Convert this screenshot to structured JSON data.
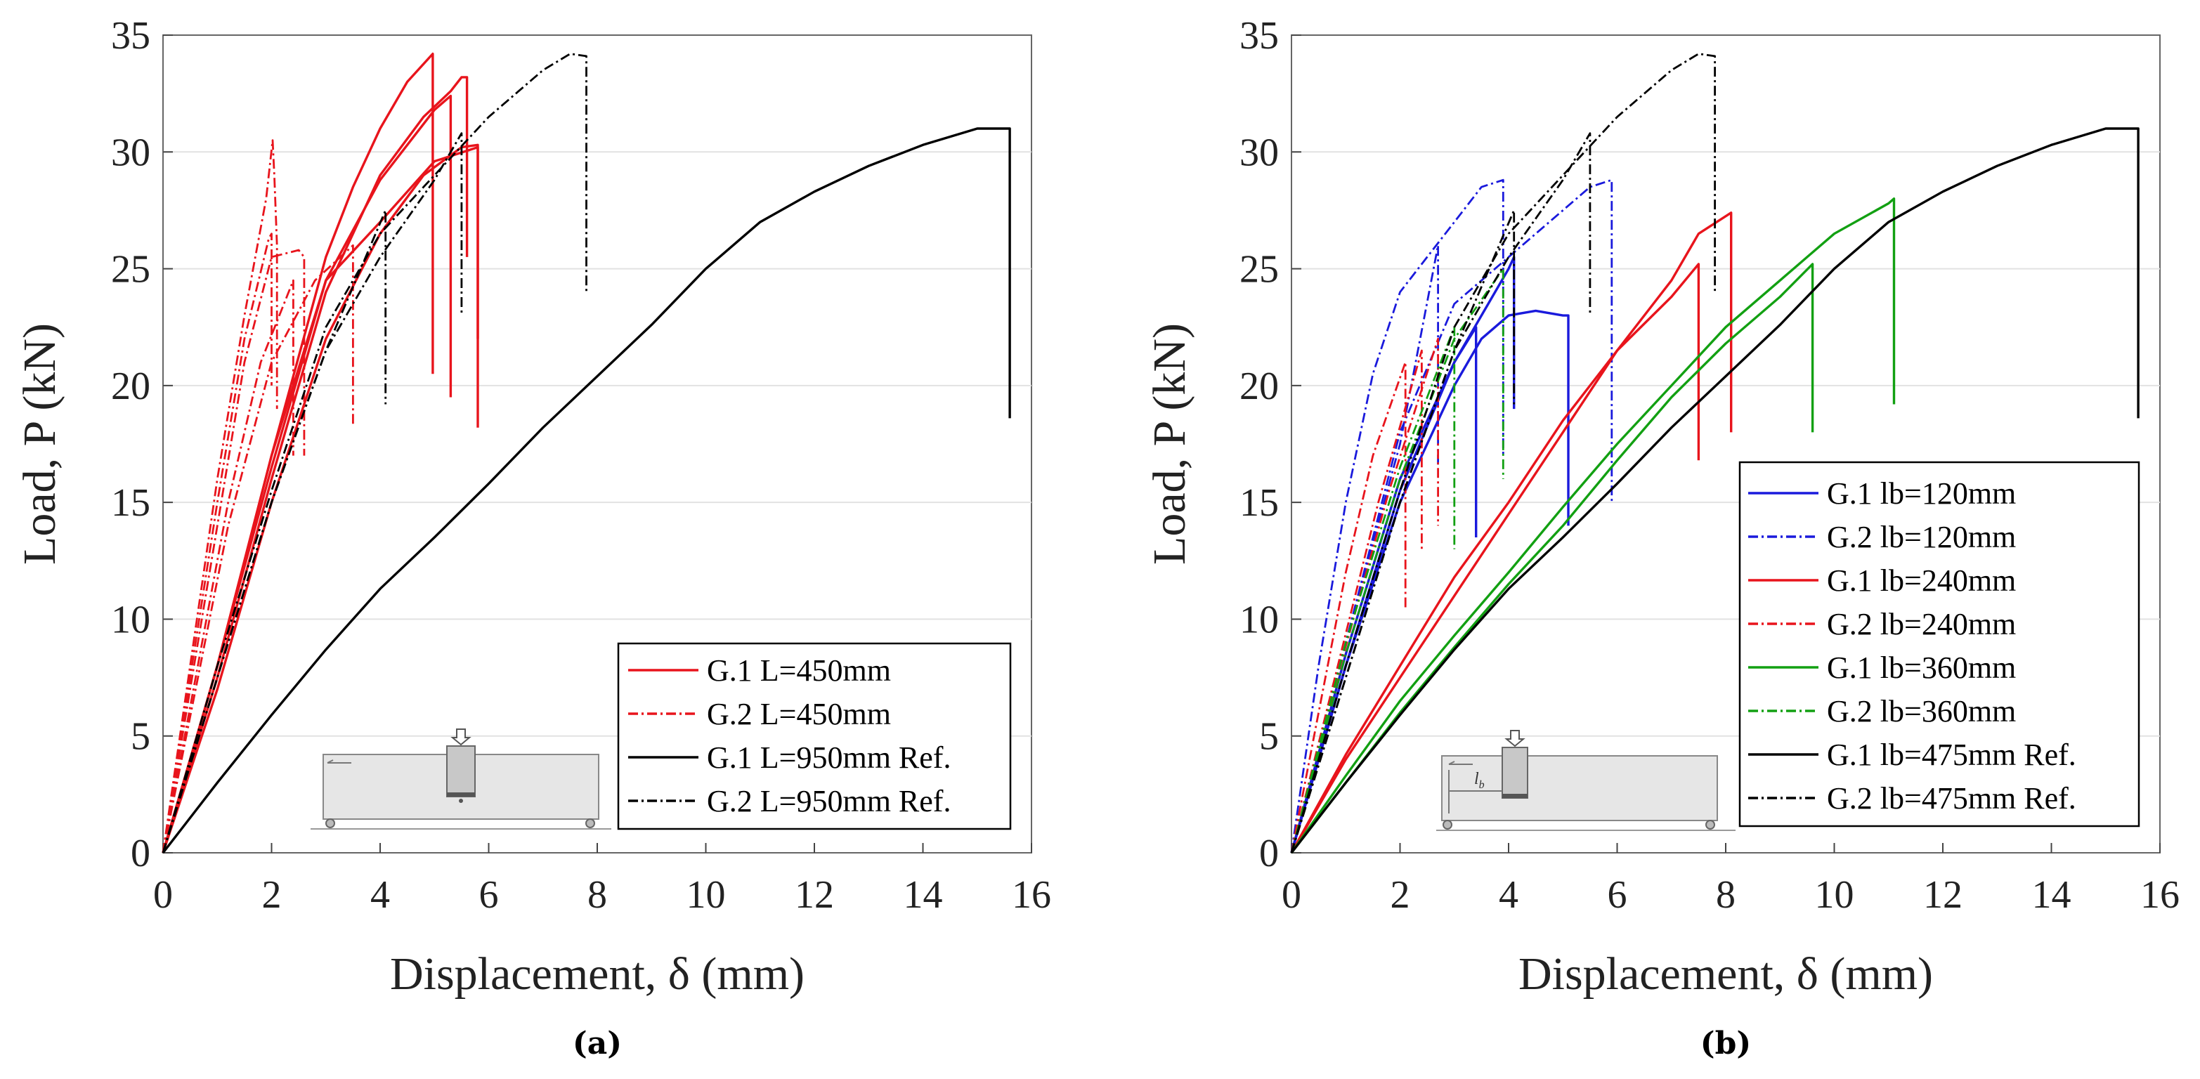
{
  "chart_data": [
    {
      "type": "line",
      "panel_label": "(a)",
      "xlabel": "Displacement, δ (mm)",
      "ylabel": "Load, P (kN)",
      "xlim": [
        0,
        16
      ],
      "ylim": [
        0,
        35
      ],
      "x_ticks": [
        0,
        2,
        4,
        6,
        8,
        10,
        12,
        14,
        16
      ],
      "y_ticks": [
        0,
        5,
        10,
        15,
        20,
        25,
        30,
        35
      ],
      "grid": "horizontal",
      "legend_position": "bottom-right",
      "inset": "beam-test-schematic",
      "legend": [
        {
          "label": "G.1 L=450mm",
          "color": "#e8141c",
          "style": "solid"
        },
        {
          "label": "G.2 L=450mm",
          "color": "#e8141c",
          "style": "dashdot"
        },
        {
          "label": "G.1 L=950mm Ref.",
          "color": "#000000",
          "style": "solid"
        },
        {
          "label": "G.2 L=950mm Ref.",
          "color": "#000000",
          "style": "dashdot"
        }
      ],
      "series": [
        {
          "name": "G.1 L=450mm #1",
          "color": "#e8141c",
          "style": "solid",
          "x": [
            0,
            1,
            2,
            3,
            3.5,
            4,
            4.5,
            4.97,
            4.97
          ],
          "y": [
            0,
            8,
            17,
            25.5,
            28.5,
            31,
            33,
            34.2,
            20.5
          ]
        },
        {
          "name": "G.1 L=450mm #2",
          "color": "#e8141c",
          "style": "solid",
          "x": [
            0,
            1,
            2,
            3,
            4,
            4.8,
            5.3,
            5.5,
            5.6,
            5.6
          ],
          "y": [
            0,
            7.5,
            16,
            24,
            29,
            31.5,
            32.6,
            33.2,
            33.2,
            25.5
          ]
        },
        {
          "name": "G.1 L=450mm #3",
          "color": "#e8141c",
          "style": "solid",
          "x": [
            0,
            1,
            2,
            3,
            4,
            5,
            5.3,
            5.3
          ],
          "y": [
            0,
            8,
            17,
            24.5,
            28.8,
            31.8,
            32.4,
            19.5
          ]
        },
        {
          "name": "G.1 L=450mm #4",
          "color": "#e8141c",
          "style": "solid",
          "x": [
            0,
            1,
            2,
            3,
            4,
            4.8,
            5.5,
            5.8,
            5.8
          ],
          "y": [
            0,
            7,
            15,
            22,
            26.5,
            29,
            30.2,
            30.3,
            18.2
          ]
        },
        {
          "name": "G.1 L=450mm #5",
          "color": "#e8141c",
          "style": "solid",
          "x": [
            0,
            1,
            2,
            3,
            4,
            5,
            5.8,
            5.8
          ],
          "y": [
            0,
            8,
            16.5,
            24.5,
            27,
            29.6,
            30.2,
            22
          ]
        },
        {
          "name": "G.2 L=450mm #1",
          "color": "#e8141c",
          "style": "dashdot",
          "x": [
            0,
            0.5,
            1,
            1.5,
            1.9,
            2.02,
            2.05,
            2.1,
            2.1
          ],
          "y": [
            0,
            8,
            16,
            23,
            28,
            30.5,
            29,
            26,
            19
          ]
        },
        {
          "name": "G.2 L=450mm #2",
          "color": "#e8141c",
          "style": "dashdot",
          "x": [
            0,
            0.5,
            1,
            1.5,
            2,
            2.5,
            2.6,
            2.6
          ],
          "y": [
            0,
            7,
            14,
            21,
            25.5,
            25.8,
            25.5,
            17
          ]
        },
        {
          "name": "G.2 L=450mm #3",
          "color": "#e8141c",
          "style": "dashdot",
          "x": [
            0,
            0.5,
            1,
            1.5,
            1.95,
            2.0,
            2.0
          ],
          "y": [
            0,
            7.5,
            15,
            22,
            26.3,
            26.5,
            20
          ]
        },
        {
          "name": "G.2 L=450mm #4",
          "color": "#e8141c",
          "style": "dashdot",
          "x": [
            0,
            0.6,
            1.2,
            2,
            2.8,
            3.5,
            3.5
          ],
          "y": [
            0,
            7,
            14,
            21,
            24.5,
            26,
            18.3
          ]
        },
        {
          "name": "G.2 L=450mm #5",
          "color": "#e8141c",
          "style": "dashdot",
          "x": [
            0,
            0.6,
            1.2,
            1.8,
            2.4,
            2.4
          ],
          "y": [
            0,
            7.5,
            15,
            21,
            24.5,
            17
          ]
        },
        {
          "name": "G.1 L=950mm Ref.",
          "color": "#000000",
          "style": "solid",
          "x": [
            0,
            1,
            2,
            3,
            4,
            5,
            6,
            7,
            8,
            9,
            10,
            11,
            12,
            13,
            14,
            15,
            15.6,
            15.6
          ],
          "y": [
            0,
            3,
            5.9,
            8.7,
            11.3,
            13.5,
            15.8,
            18.2,
            20.4,
            22.6,
            25,
            27,
            28.3,
            29.4,
            30.3,
            31,
            31,
            18.6
          ]
        },
        {
          "name": "G.2 L=950mm Ref. #1",
          "color": "#000000",
          "style": "dashdot",
          "x": [
            0,
            1,
            2,
            3,
            4,
            5,
            6,
            7,
            7.5,
            7.8,
            7.8
          ],
          "y": [
            0,
            8,
            15.5,
            22.5,
            26.5,
            29,
            31.5,
            33.5,
            34.2,
            34.1,
            24
          ]
        },
        {
          "name": "G.2 L=950mm Ref. #2",
          "color": "#000000",
          "style": "dashdot",
          "x": [
            0,
            1,
            2,
            3,
            4,
            5,
            5.5,
            5.5
          ],
          "y": [
            0,
            7.5,
            15,
            21.5,
            25.5,
            28.8,
            30.8,
            23
          ]
        },
        {
          "name": "G.2 L=950mm Ref. #3",
          "color": "#000000",
          "style": "dashdot",
          "x": [
            0,
            1,
            2,
            3,
            4.1,
            4.1
          ],
          "y": [
            0,
            7.5,
            15,
            21.5,
            27.5,
            19.2
          ]
        }
      ]
    },
    {
      "type": "line",
      "panel_label": "(b)",
      "xlabel": "Displacement, δ (mm)",
      "ylabel": "Load, P (kN)",
      "xlim": [
        0,
        16
      ],
      "ylim": [
        0,
        35
      ],
      "x_ticks": [
        0,
        2,
        4,
        6,
        8,
        10,
        12,
        14,
        16
      ],
      "y_ticks": [
        0,
        5,
        10,
        15,
        20,
        25,
        30,
        35
      ],
      "grid": "horizontal",
      "legend_position": "right",
      "inset": "beam-test-schematic",
      "inset_label": "l",
      "inset_label_subscript": "b",
      "legend": [
        {
          "label": "G.1 lb=120mm",
          "color": "#1a1adc",
          "style": "solid"
        },
        {
          "label": "G.2 lb=120mm",
          "color": "#1a1adc",
          "style": "dashdot"
        },
        {
          "label": "G.1 lb=240mm",
          "color": "#e8141c",
          "style": "solid"
        },
        {
          "label": "G.2 lb=240mm",
          "color": "#e8141c",
          "style": "dashdot"
        },
        {
          "label": "G.1 lb=360mm",
          "color": "#12a012",
          "style": "solid"
        },
        {
          "label": "G.2 lb=360mm",
          "color": "#12a012",
          "style": "dashdot"
        },
        {
          "label": "G.1 lb=475mm Ref.",
          "color": "#000000",
          "style": "solid"
        },
        {
          "label": "G.2 lb=475mm Ref.",
          "color": "#000000",
          "style": "dashdot"
        }
      ],
      "series": [
        {
          "name": "G.1 lb=120mm #1",
          "color": "#1a1adc",
          "style": "solid",
          "x": [
            0,
            1,
            2,
            3,
            3.5,
            4,
            4.5,
            5,
            5.1,
            5.1
          ],
          "y": [
            0,
            8,
            15,
            20,
            22,
            23,
            23.2,
            23,
            23,
            14
          ]
        },
        {
          "name": "G.1 lb=120mm #2",
          "color": "#1a1adc",
          "style": "solid",
          "x": [
            0,
            1,
            2,
            3,
            3.4,
            3.4
          ],
          "y": [
            0,
            8.5,
            16,
            21,
            22.5,
            13.5
          ]
        },
        {
          "name": "G.1 lb=120mm #3",
          "color": "#1a1adc",
          "style": "solid",
          "x": [
            0,
            1,
            2,
            3,
            4,
            4.1,
            4.1
          ],
          "y": [
            0,
            8,
            15.5,
            21,
            25,
            25.5,
            19
          ]
        },
        {
          "name": "G.2 lb=120mm #1",
          "color": "#1a1adc",
          "style": "dashdot",
          "x": [
            0,
            0.5,
            1,
            1.5,
            2,
            2.5,
            3,
            3.5,
            3.9,
            3.9
          ],
          "y": [
            0,
            8,
            15,
            20.5,
            24,
            25.5,
            27,
            28.5,
            28.8,
            17
          ]
        },
        {
          "name": "G.2 lb=120mm #2",
          "color": "#1a1adc",
          "style": "dashdot",
          "x": [
            0,
            1,
            2,
            3,
            4,
            4.5,
            5,
            5.5,
            5.9,
            5.9
          ],
          "y": [
            0,
            9,
            18,
            23.5,
            25.5,
            26.5,
            27.5,
            28.5,
            28.8,
            15
          ]
        },
        {
          "name": "G.2 lb=120mm #3",
          "color": "#1a1adc",
          "style": "dashdot",
          "x": [
            0,
            1,
            2,
            2.7,
            2.7
          ],
          "y": [
            0,
            9,
            17.5,
            26,
            16.5
          ]
        },
        {
          "name": "G.1 lb=240mm #1",
          "color": "#e8141c",
          "style": "solid",
          "x": [
            0,
            1,
            2,
            3,
            4,
            5,
            6,
            7,
            7.5,
            8.1,
            8.1
          ],
          "y": [
            0,
            4,
            7.5,
            11,
            14.5,
            18,
            21.5,
            24.5,
            26.5,
            27.4,
            18
          ]
        },
        {
          "name": "G.1 lb=240mm #2",
          "color": "#e8141c",
          "style": "solid",
          "x": [
            0,
            1,
            2,
            3,
            4,
            5,
            6,
            7,
            7.5,
            7.5
          ],
          "y": [
            0,
            4.2,
            8,
            11.8,
            15,
            18.5,
            21.5,
            23.8,
            25.2,
            16.8
          ]
        },
        {
          "name": "G.2 lb=240mm #1",
          "color": "#e8141c",
          "style": "dashdot",
          "x": [
            0,
            0.5,
            1,
            1.5,
            2.1,
            2.1
          ],
          "y": [
            0,
            6,
            12,
            17,
            21,
            10.5
          ]
        },
        {
          "name": "G.2 lb=240mm #2",
          "color": "#e8141c",
          "style": "dashdot",
          "x": [
            0,
            0.8,
            1.6,
            2.4,
            2.4
          ],
          "y": [
            0,
            7.5,
            15,
            21.5,
            13
          ]
        },
        {
          "name": "G.2 lb=240mm #3",
          "color": "#e8141c",
          "style": "dashdot",
          "x": [
            0,
            0.9,
            1.8,
            2.7,
            2.7
          ],
          "y": [
            0,
            8,
            15.5,
            22,
            14
          ]
        },
        {
          "name": "G.1 lb=360mm #1",
          "color": "#12a012",
          "style": "solid",
          "x": [
            0,
            1,
            2,
            3,
            4,
            5,
            6,
            7,
            8,
            9,
            9.5,
            10,
            11,
            11.1,
            11.1
          ],
          "y": [
            0,
            3.3,
            6.5,
            9.3,
            12,
            14.8,
            17.5,
            20,
            22.5,
            24.5,
            25.5,
            26.5,
            27.8,
            28,
            19.2
          ]
        },
        {
          "name": "G.1 lb=360mm #2",
          "color": "#12a012",
          "style": "solid",
          "x": [
            0,
            1,
            2,
            3,
            4,
            5,
            6,
            7,
            8,
            9,
            9.6,
            9.6
          ],
          "y": [
            0,
            3,
            6,
            8.8,
            11.5,
            14,
            16.8,
            19.5,
            21.8,
            23.8,
            25.2,
            18
          ]
        },
        {
          "name": "G.2 lb=360mm #1",
          "color": "#12a012",
          "style": "dashdot",
          "x": [
            0,
            1,
            2,
            3,
            3,
            3
          ],
          "y": [
            0,
            9,
            16.5,
            22.5,
            22.5,
            13
          ]
        },
        {
          "name": "G.2 lb=360mm #2",
          "color": "#12a012",
          "style": "dashdot",
          "x": [
            0,
            1,
            2,
            3,
            3.9,
            3.9
          ],
          "y": [
            0,
            8.5,
            16,
            22,
            25,
            16
          ]
        },
        {
          "name": "G.1 lb=475mm Ref.",
          "color": "#000000",
          "style": "solid",
          "x": [
            0,
            1,
            2,
            3,
            4,
            5,
            6,
            7,
            8,
            9,
            10,
            11,
            12,
            13,
            14,
            15,
            15.6,
            15.6
          ],
          "y": [
            0,
            3,
            5.9,
            8.7,
            11.3,
            13.5,
            15.8,
            18.2,
            20.4,
            22.6,
            25,
            27,
            28.3,
            29.4,
            30.3,
            31,
            31,
            18.6
          ]
        },
        {
          "name": "G.2 lb=475mm Ref. #1",
          "color": "#000000",
          "style": "dashdot",
          "x": [
            0,
            1,
            2,
            3,
            4,
            5,
            6,
            7,
            7.5,
            7.8,
            7.8
          ],
          "y": [
            0,
            8,
            15.5,
            22.5,
            26.5,
            29,
            31.5,
            33.5,
            34.2,
            34.1,
            24
          ]
        },
        {
          "name": "G.2 lb=475mm Ref. #2",
          "color": "#000000",
          "style": "dashdot",
          "x": [
            0,
            1,
            2,
            3,
            4,
            5,
            5.5,
            5.5
          ],
          "y": [
            0,
            7.5,
            15,
            21.5,
            25.5,
            28.8,
            30.8,
            23
          ]
        },
        {
          "name": "G.2 lb=475mm Ref. #3",
          "color": "#000000",
          "style": "dashdot",
          "x": [
            0,
            1,
            2,
            3,
            4.1,
            4.1
          ],
          "y": [
            0,
            7.5,
            15,
            21.5,
            27.5,
            19.2
          ]
        }
      ]
    }
  ]
}
